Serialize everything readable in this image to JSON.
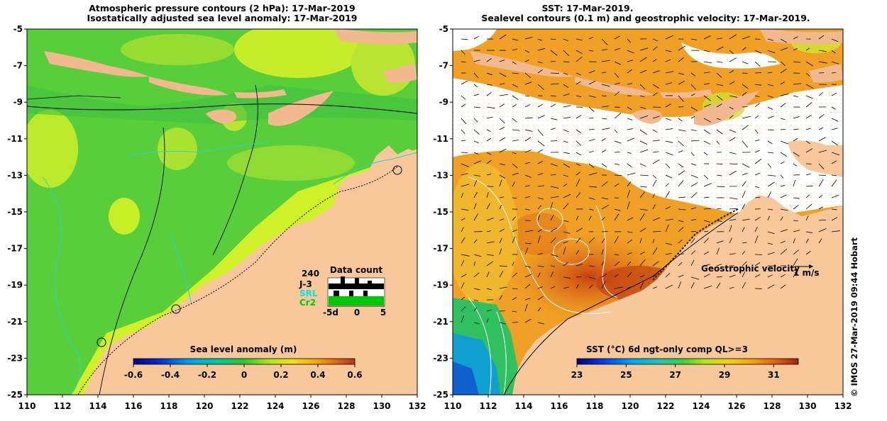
{
  "left_panel": {
    "title_line1": "Atmospheric pressure contours (2 hPa): 17-Mar-2019",
    "title_line2": "Isostatically adjusted sea level anomaly: 17-Mar-2019",
    "colorbar": {
      "label": "Sea level anomaly (m)",
      "tick_labels": [
        "-0.6",
        "-0.4",
        "-0.2",
        "0",
        "0.2",
        "0.4",
        "0.6"
      ],
      "range": [
        -0.6,
        0.6
      ]
    },
    "data_count": {
      "title": "Data count",
      "max_label": "240",
      "rows": [
        "J-3",
        "SRL",
        "Cr2"
      ],
      "row_colors": [
        "#000000",
        "#00e5e5",
        "#00c800"
      ],
      "axis_labels": [
        "-5d",
        "0",
        "5"
      ]
    }
  },
  "right_panel": {
    "title_line1": "SST: 17-Mar-2019.",
    "title_line2": "Sealevel contours (0.1 m) and geostrophic velocity: 17-Mar-2019.",
    "colorbar": {
      "label": "SST (°C) 6d ngt-only comp QL>=3",
      "tick_labels": [
        "23",
        "25",
        "27",
        "29",
        "31"
      ],
      "range": [
        23,
        32
      ]
    },
    "velocity_legend": {
      "label": "Geostrophic velocity",
      "unit": "1 m/s"
    }
  },
  "axes": {
    "x_ticks": [
      "110",
      "112",
      "114",
      "116",
      "118",
      "120",
      "122",
      "124",
      "126",
      "128",
      "130",
      "132"
    ],
    "y_ticks": [
      "-5",
      "-7",
      "-9",
      "-11",
      "-13",
      "-15",
      "-17",
      "-19",
      "-21",
      "-23",
      "-25"
    ],
    "lon_range": [
      110,
      132
    ],
    "lat_range": [
      -25,
      -5
    ]
  },
  "credit": "© IMOS 27-Mar-2019 09:44 Hobart",
  "colors": {
    "land": "#f8c89a",
    "island": "#f2b98e",
    "ocean_green": "#52d040",
    "ocean_yellow": "#c8f028",
    "sst_orange": "#f0a020",
    "sst_red": "#d04010"
  }
}
